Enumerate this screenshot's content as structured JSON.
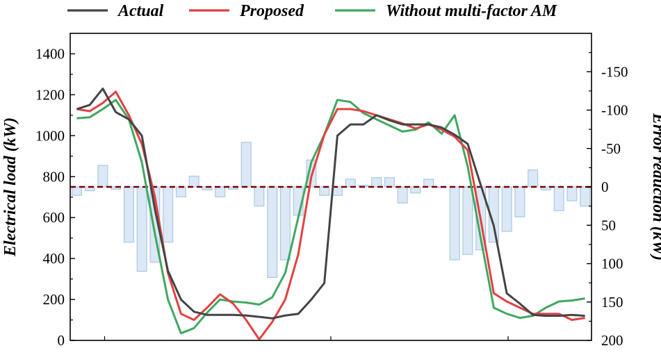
{
  "chart_data": {
    "type": "line",
    "title": "",
    "ylabel_left": "Electrical load (kW)",
    "ylabel_right": "Error reduction (kW)",
    "y_left_ticks": [
      "0",
      "200",
      "400",
      "600",
      "800",
      "1000",
      "1200",
      "1400"
    ],
    "y_left_range": [
      0,
      1500
    ],
    "y_right_ticks": [
      "-150",
      "-100",
      "-50",
      "0",
      "50",
      "100",
      "150",
      "200"
    ],
    "y_right_range": [
      -200,
      200
    ],
    "y_right_inverted": true,
    "x_count": 40,
    "x_tick_labels": false,
    "reference_line": {
      "axis": "right",
      "value": 0,
      "style": "dashed",
      "color": "#7a0000"
    },
    "colors": {
      "actual": "#444444",
      "proposed": "#e34040",
      "without_am": "#3ea860",
      "bars_fill": "#dce8f5",
      "bars_stroke": "#a9c8e6"
    },
    "legend": {
      "placement": "top",
      "entries": [
        "Actual",
        "Proposed",
        "Without multi-factor AM"
      ]
    },
    "series": [
      {
        "name": "Actual",
        "axis": "left",
        "values": [
          1130,
          1150,
          1230,
          1115,
          1080,
          1000,
          640,
          340,
          200,
          140,
          125,
          125,
          125,
          122,
          115,
          108,
          122,
          130,
          200,
          280,
          1000,
          1055,
          1055,
          1100,
          1075,
          1055,
          1055,
          1055,
          1040,
          1005,
          960,
          760,
          560,
          230,
          180,
          125,
          120,
          120,
          125,
          120
        ]
      },
      {
        "name": "Proposed",
        "axis": "left",
        "values": [
          1130,
          1120,
          1160,
          1215,
          1100,
          960,
          700,
          330,
          130,
          100,
          160,
          225,
          180,
          100,
          5,
          90,
          200,
          420,
          800,
          1005,
          1130,
          1130,
          1120,
          1100,
          1080,
          1060,
          1035,
          1055,
          1030,
          995,
          930,
          590,
          230,
          190,
          160,
          130,
          130,
          130,
          100,
          110
        ]
      },
      {
        "name": "Without multi-factor AM",
        "axis": "left",
        "values": [
          1085,
          1090,
          1130,
          1175,
          1080,
          870,
          520,
          200,
          35,
          60,
          135,
          200,
          190,
          185,
          175,
          210,
          330,
          600,
          870,
          1005,
          1175,
          1165,
          1110,
          1080,
          1050,
          1020,
          1030,
          1065,
          1010,
          1100,
          850,
          500,
          160,
          130,
          110,
          120,
          160,
          190,
          195,
          205
        ]
      },
      {
        "name": "Error reduction",
        "axis": "right",
        "type": "bar",
        "values": [
          11,
          5,
          -28,
          3,
          72,
          110,
          98,
          72,
          13,
          -14,
          4,
          13,
          3,
          -58,
          25,
          118,
          95,
          37,
          -35,
          11,
          11,
          -10,
          -2,
          -12,
          -12,
          21,
          8,
          -10,
          1,
          95,
          88,
          82,
          72,
          58,
          39,
          -22,
          4,
          31,
          18,
          25
        ]
      }
    ]
  }
}
